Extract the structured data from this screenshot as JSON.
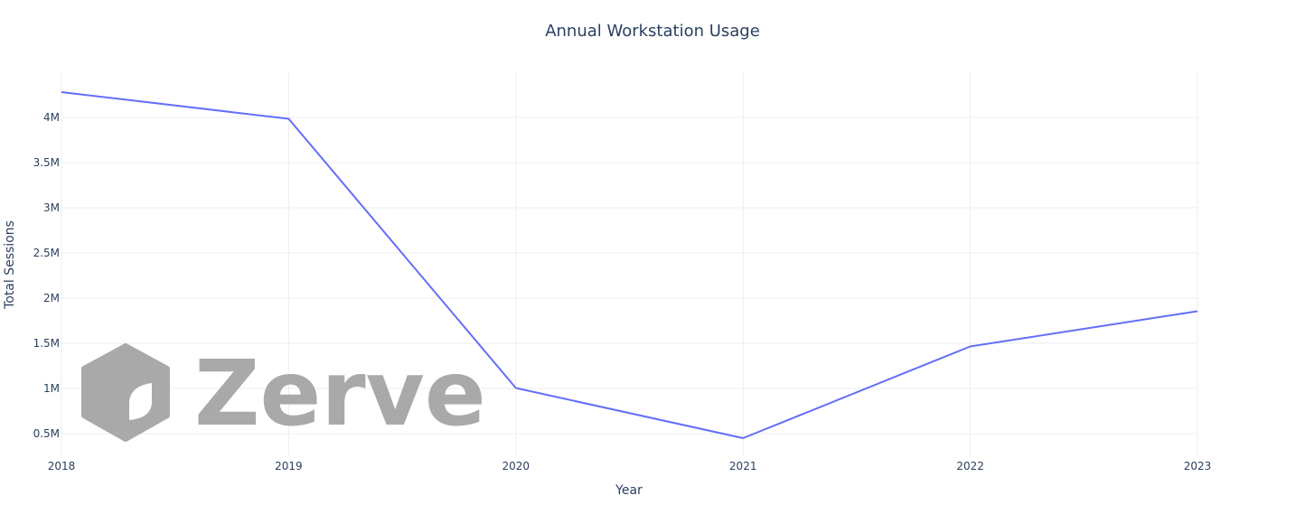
{
  "chart_data": {
    "type": "line",
    "title": "Annual Workstation Usage",
    "xlabel": "Year",
    "ylabel": "Total Sessions",
    "x": [
      2018,
      2019,
      2020,
      2021,
      2022,
      2023
    ],
    "series": [
      {
        "values": [
          4280000,
          3985000,
          1005000,
          450000,
          1465000,
          1855000
        ],
        "color": "#636efa"
      }
    ],
    "xlim": [
      2018,
      2023
    ],
    "ylim": [
      250000,
      4500000
    ],
    "x_ticks": [
      2018,
      2019,
      2020,
      2021,
      2022,
      2023
    ],
    "x_tick_labels": [
      "2018",
      "2019",
      "2020",
      "2021",
      "2022",
      "2023"
    ],
    "y_ticks": [
      500000,
      1000000,
      1500000,
      2000000,
      2500000,
      3000000,
      3500000,
      4000000
    ],
    "y_tick_labels": [
      "0.5M",
      "1M",
      "1.5M",
      "2M",
      "2.5M",
      "3M",
      "3.5M",
      "4M"
    ],
    "grid": true,
    "legend": "none"
  },
  "watermark": {
    "text": "Zerve",
    "color": "#a9a9aa",
    "icon": "zerve-logo-icon"
  },
  "colors": {
    "text": "#2a3f5f",
    "grid": "#ebedf0",
    "background": "#ffffff"
  }
}
